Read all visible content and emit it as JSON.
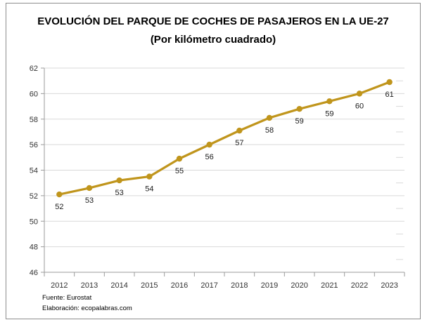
{
  "chart": {
    "title": "EVOLUCIÓN DEL PARQUE DE COCHES DE PASAJEROS EN LA UE-27",
    "subtitle": "(Por kilómetro cuadrado)"
  },
  "footer": {
    "source": "Fuente: Eurostat",
    "elaboration": "Elaboración: ecopalabras.com"
  },
  "chart_data": {
    "type": "line",
    "title": "EVOLUCIÓN DEL PARQUE DE COCHES DE PASAJEROS EN LA UE-27",
    "subtitle": "(Por kilómetro cuadrado)",
    "categories": [
      "2012",
      "2013",
      "2014",
      "2015",
      "2016",
      "2017",
      "2018",
      "2019",
      "2020",
      "2021",
      "2022",
      "2023"
    ],
    "series": [
      {
        "values": [
          52.1,
          52.6,
          53.2,
          53.5,
          54.9,
          56.0,
          57.1,
          58.1,
          58.8,
          59.4,
          60.0,
          60.9
        ],
        "labels": [
          "52",
          "53",
          "53",
          "54",
          "55",
          "56",
          "57",
          "58",
          "59",
          "59",
          "60",
          "61"
        ]
      }
    ],
    "ylim": [
      46,
      62
    ],
    "ytick_step": 2,
    "yticks": [
      46,
      48,
      50,
      52,
      54,
      56,
      58,
      60,
      62
    ],
    "grid": true,
    "legend": false,
    "data_labels_position": "below",
    "line_color": "#c0951c",
    "marker_color": "#c0951c",
    "grid_color": "#d9d9d9",
    "axis_color": "#9b9b9b",
    "tick_label_color": "#333333",
    "data_label_color": "#1a1a1a",
    "frame_border_color": "#8c8c8c"
  }
}
